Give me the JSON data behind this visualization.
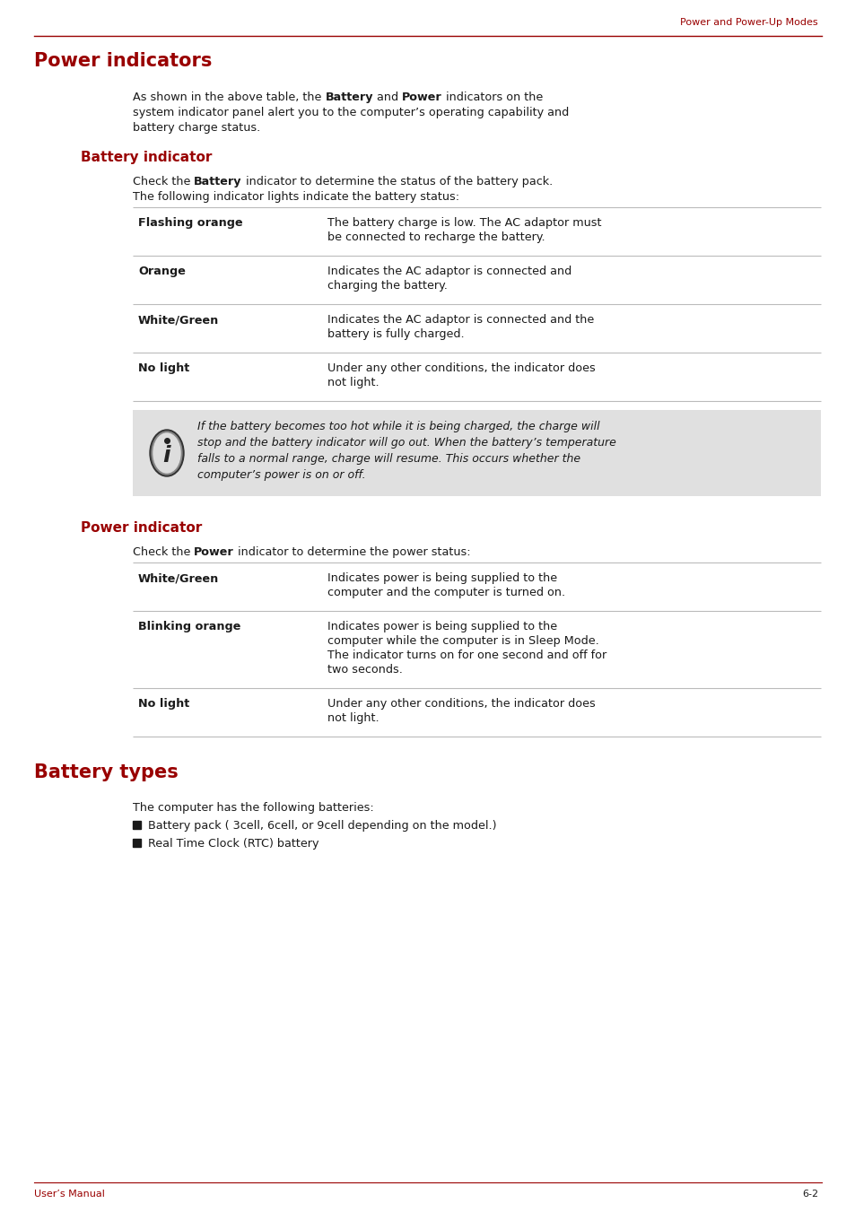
{
  "page_title": "Power and Power-Up Modes",
  "page_number": "6-2",
  "footer_left": "User’s Manual",
  "bg_color": "#ffffff",
  "text_color": "#1a1a1a",
  "red_color": "#990000",
  "gray_line": "#bbbbbb",
  "note_bg": "#e0e0e0",
  "section_title": "Power indicators",
  "section2_title": "Battery types",
  "subsection1_title": "Battery indicator",
  "subsection2_title": "Power indicator",
  "section2_intro": "The computer has the following batteries:",
  "battery_list": [
    "Battery pack ( 3cell, 6cell, or 9cell depending on the model.)",
    "Real Time Clock (RTC) battery"
  ],
  "note_text_lines": [
    "If the battery becomes too hot while it is being charged, the charge will",
    "stop and the battery indicator will go out. When the battery’s temperature",
    "falls to a normal range, charge will resume. This occurs whether the",
    "computer’s power is on or off."
  ],
  "battery_table": [
    {
      "key": "Flashing orange",
      "value_lines": [
        "The battery charge is low. The AC adaptor must",
        "be connected to recharge the battery."
      ]
    },
    {
      "key": "Orange",
      "value_lines": [
        "Indicates the AC adaptor is connected and",
        "charging the battery."
      ]
    },
    {
      "key": "White/Green",
      "value_lines": [
        "Indicates the AC adaptor is connected and the",
        "battery is fully charged."
      ]
    },
    {
      "key": "No light",
      "value_lines": [
        "Under any other conditions, the indicator does",
        "not light."
      ]
    }
  ],
  "power_table": [
    {
      "key": "White/Green",
      "value_lines": [
        "Indicates power is being supplied to the",
        "computer and the computer is turned on."
      ]
    },
    {
      "key": "Blinking orange",
      "value_lines": [
        "Indicates power is being supplied to the",
        "computer while the computer is in Sleep Mode.",
        "The indicator turns on for one second and off for",
        "two seconds."
      ]
    },
    {
      "key": "No light",
      "value_lines": [
        "Under any other conditions, the indicator does",
        "not light."
      ]
    }
  ]
}
